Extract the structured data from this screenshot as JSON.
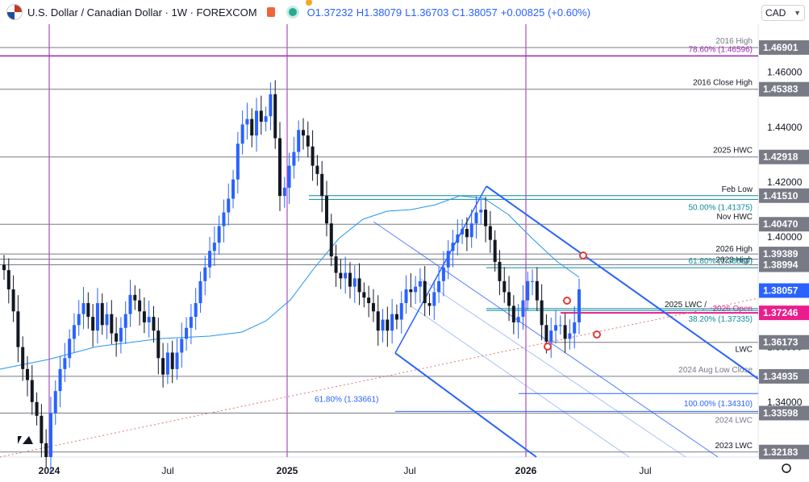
{
  "header": {
    "symbol": "U.S. Dollar / Canadian Dollar · 1W · FOREXCOM",
    "open": "O1.37232",
    "high": "H1.38079",
    "low": "L1.36703",
    "close": "C1.38057",
    "change": "+0.00825 (+0.60%)",
    "currency": "CAD"
  },
  "colors": {
    "up": "#2962ff",
    "down": "#131722",
    "time_marker": "#9c27b0",
    "pink_level": "#e91e8c",
    "teal_level": "#0f8a9c",
    "channel": "#2962ff",
    "ma": "#2196f3",
    "trend_dotted": "#e57373",
    "level_line": "#787b86"
  },
  "chart_data": {
    "type": "candlestick",
    "y_range": [
      1.32,
      1.4775
    ],
    "y_ticks": [
      "1.34000",
      "1.36000",
      "1.38000",
      "1.40000",
      "1.42000",
      "1.44000",
      "1.46000"
    ],
    "x_ticks": [
      "2024",
      "Jul",
      "2025",
      "Jul",
      "2026",
      "Jul"
    ],
    "levels": [
      {
        "label": "2016 High",
        "value": 1.46901,
        "price": "1.46901",
        "label_color": "#787b86",
        "line": "#787b86",
        "tag_bg": "#787b86",
        "tag_fg": "#ffffff"
      },
      {
        "label": "78.60% (1.46596)",
        "value": 1.46596,
        "price": "",
        "label_color": "#9c27b0",
        "line": "#9c27b0",
        "tag_bg": "",
        "tag_fg": ""
      },
      {
        "label": "2016 Close High",
        "value": 1.45383,
        "price": "1.45383",
        "label_color": "#131722",
        "line": "#787b86",
        "tag_bg": "#787b86",
        "tag_fg": "#ffffff"
      },
      {
        "label": "2025 HWC",
        "value": 1.42918,
        "price": "1.42918",
        "label_color": "#131722",
        "line": "#787b86",
        "tag_bg": "#787b86",
        "tag_fg": "#ffffff"
      },
      {
        "label": "Feb Low",
        "value": 1.4151,
        "price": "1.41510",
        "label_color": "#131722",
        "line": "#0f8a9c",
        "tag_bg": "#787b86",
        "tag_fg": "#ffffff"
      },
      {
        "label": "50.00% (1.41375)",
        "value": 1.41375,
        "price": "",
        "label_color": "#0f8a9c",
        "line": "#0f8a9c",
        "tag_bg": "",
        "tag_fg": ""
      },
      {
        "label": "Nov HWC",
        "value": 1.4047,
        "price": "1.40470",
        "label_color": "#131722",
        "line": "#787b86",
        "tag_bg": "#787b86",
        "tag_fg": "#ffffff"
      },
      {
        "label": "2026 High",
        "value": 1.39389,
        "price": "1.39389",
        "label_color": "#131722",
        "line": "#787b86",
        "tag_bg": "#787b86",
        "tag_fg": "#ffffff"
      },
      {
        "label": "2023 High",
        "value": 1.392,
        "price": "",
        "label_color": "#131722",
        "line": "#787b86",
        "tag_bg": "",
        "tag_fg": ""
      },
      {
        "label": "",
        "value": 1.38994,
        "price": "1.38994",
        "label_color": "#131722",
        "line": "#787b86",
        "tag_bg": "#787b86",
        "tag_fg": "#ffffff"
      },
      {
        "label": "61.80% (1.38889)",
        "value": 1.38889,
        "price": "",
        "label_color": "#0f8a9c",
        "line": "#0f8a9c",
        "tag_bg": "",
        "tag_fg": ""
      },
      {
        "label": "",
        "value": 1.38057,
        "price": "1.38057",
        "label_color": "#131722",
        "line": "",
        "tag_bg": "#2962ff",
        "tag_fg": "#ffffff"
      },
      {
        "label": "2025 LWC /",
        "value": 1.374,
        "price": "",
        "label_color": "#131722",
        "line": "#0f8a9c",
        "tag_bg": "",
        "tag_fg": ""
      },
      {
        "label": "2026 Open",
        "value": 1.37246,
        "price": "1.37246",
        "label_color": "#e91e8c",
        "line": "#e91e8c",
        "tag_bg": "#e91e8c",
        "tag_fg": "#ffffff"
      },
      {
        "label": "38.20% (1.37335)",
        "value": 1.37335,
        "price": "",
        "label_color": "#0f8a9c",
        "line": "#0f8a9c",
        "tag_bg": "",
        "tag_fg": ""
      },
      {
        "label": "LWC",
        "value": 1.36173,
        "price": "1.36173",
        "label_color": "#131722",
        "line": "#787b86",
        "tag_bg": "#787b86",
        "tag_fg": "#ffffff"
      },
      {
        "label": "2024 Aug Low Close",
        "value": 1.34935,
        "price": "1.34935",
        "label_color": "#787b86",
        "line": "#787b86",
        "tag_bg": "#787b86",
        "tag_fg": "#ffffff"
      },
      {
        "label": "100.00% (1.34310)",
        "value": 1.3431,
        "price": "",
        "label_color": "#2962ff",
        "line": "#2962ff",
        "tag_bg": "",
        "tag_fg": ""
      },
      {
        "label": "61.80% (1.33661)",
        "value": 1.33661,
        "price": "",
        "label_color": "#2962ff",
        "line": "#2962ff",
        "tag_bg": "",
        "tag_fg": ""
      },
      {
        "label": "2024 LWC",
        "value": 1.33598,
        "price": "1.33598",
        "label_color": "#787b86",
        "line": "#787b86",
        "tag_bg": "#787b86",
        "tag_fg": "#ffffff"
      },
      {
        "label": "2023 LWC",
        "value": 1.32183,
        "price": "1.32183",
        "label_color": "#131722",
        "line": "#787b86",
        "tag_bg": "#787b86",
        "tag_fg": "#ffffff"
      }
    ],
    "candles_close_path": [
      1.388,
      1.381,
      1.373,
      1.36,
      1.352,
      1.348,
      1.34,
      1.335,
      1.325,
      1.32,
      1.336,
      1.344,
      1.352,
      1.356,
      1.363,
      1.368,
      1.372,
      1.376,
      1.371,
      1.366,
      1.376,
      1.368,
      1.372,
      1.365,
      1.362,
      1.367,
      1.372,
      1.379,
      1.377,
      1.373,
      1.369,
      1.371,
      1.366,
      1.356,
      1.35,
      1.358,
      1.352,
      1.358,
      1.363,
      1.367,
      1.371,
      1.376,
      1.384,
      1.389,
      1.395,
      1.398,
      1.404,
      1.409,
      1.414,
      1.421,
      1.434,
      1.441,
      1.443,
      1.437,
      1.446,
      1.442,
      1.444,
      1.452,
      1.436,
      1.415,
      1.418,
      1.426,
      1.431,
      1.439,
      1.437,
      1.433,
      1.426,
      1.423,
      1.415,
      1.405,
      1.393,
      1.387,
      1.385,
      1.387,
      1.382,
      1.385,
      1.38,
      1.378,
      1.376,
      1.373,
      1.366,
      1.37,
      1.366,
      1.372,
      1.37,
      1.376,
      1.381,
      1.38,
      1.382,
      1.384,
      1.376,
      1.375,
      1.38,
      1.384,
      1.389,
      1.395,
      1.398,
      1.401,
      1.403,
      1.4,
      1.405,
      1.409,
      1.41,
      1.404,
      1.399,
      1.391,
      1.384,
      1.38,
      1.375,
      1.369,
      1.371,
      1.377,
      1.384,
      1.384,
      1.377,
      1.368,
      1.362,
      1.366,
      1.368,
      1.368,
      1.363,
      1.365,
      1.369,
      1.381
    ],
    "trendline_note": "2026 High channel and fork",
    "grid": false
  }
}
